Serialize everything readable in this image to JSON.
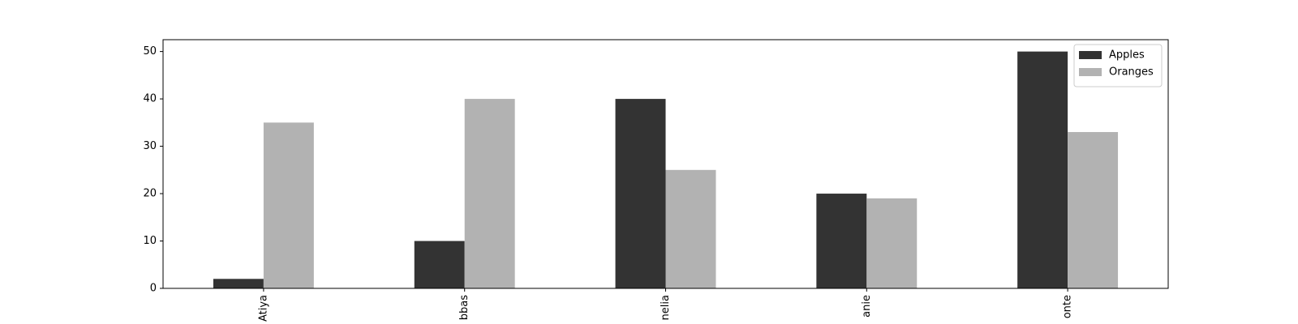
{
  "chart_data": {
    "type": "bar",
    "categories": [
      "Atiya",
      "bbas",
      "nelia",
      "anie",
      "onte"
    ],
    "series": [
      {
        "name": "Apples",
        "color": "#333333",
        "values": [
          2,
          10,
          40,
          20,
          50
        ]
      },
      {
        "name": "Oranges",
        "color": "#b2b2b2",
        "values": [
          35,
          40,
          25,
          19,
          33
        ]
      }
    ],
    "ylim": [
      0,
      52.5
    ],
    "yticks": [
      0,
      10,
      20,
      30,
      40,
      50
    ],
    "grid": false,
    "legend": "upper right"
  }
}
